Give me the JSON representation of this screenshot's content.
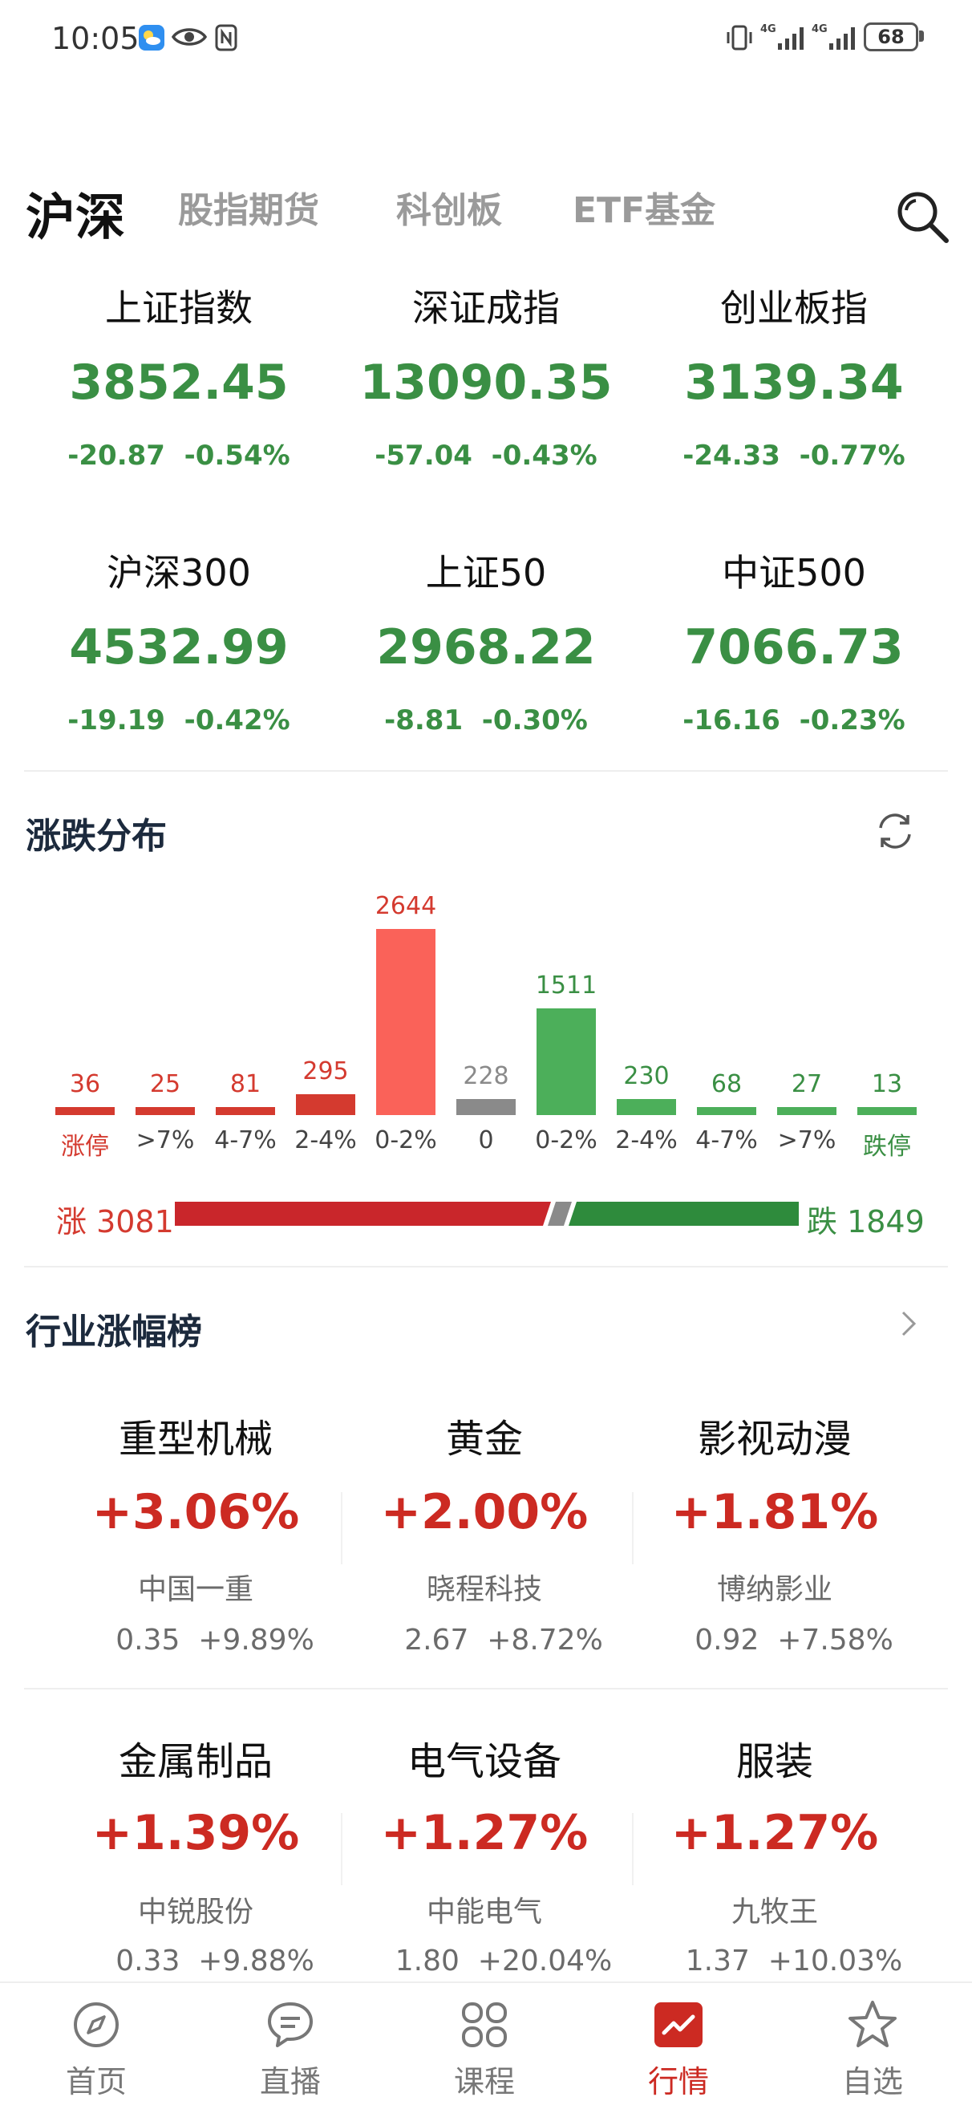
{
  "status_bar": {
    "time": "10:05",
    "battery": "68"
  },
  "tabs": [
    {
      "label": "沪深",
      "active": true
    },
    {
      "label": "股指期货",
      "active": false
    },
    {
      "label": "科创板",
      "active": false
    },
    {
      "label": "ETF基金",
      "active": false
    }
  ],
  "indices": [
    {
      "name": "上证指数",
      "value": "3852.45",
      "change": "-20.87",
      "pct": "-0.54%"
    },
    {
      "name": "深证成指",
      "value": "13090.35",
      "change": "-57.04",
      "pct": "-0.43%"
    },
    {
      "name": "创业板指",
      "value": "3139.34",
      "change": "-24.33",
      "pct": "-0.77%"
    },
    {
      "name": "沪深300",
      "value": "4532.99",
      "change": "-19.19",
      "pct": "-0.42%"
    },
    {
      "name": "上证50",
      "value": "2968.22",
      "change": "-8.81",
      "pct": "-0.30%"
    },
    {
      "name": "中证500",
      "value": "7066.73",
      "change": "-16.16",
      "pct": "-0.23%"
    }
  ],
  "distribution": {
    "title": "涨跌分布",
    "categories": [
      "涨停",
      ">7%",
      "4-7%",
      "2-4%",
      "0-2%",
      "0",
      "0-2%",
      "2-4%",
      "4-7%",
      ">7%",
      "跌停"
    ],
    "values": [
      36,
      25,
      81,
      295,
      2644,
      228,
      1511,
      230,
      68,
      27,
      13
    ],
    "kinds": [
      "up",
      "up",
      "up",
      "up",
      "up",
      "flat",
      "down",
      "down",
      "down",
      "down",
      "down"
    ],
    "up_label": "涨 3081",
    "down_label": "跌 1849",
    "up_total": 3081,
    "down_total": 1849
  },
  "industry": {
    "title": "行业涨幅榜",
    "items": [
      {
        "name": "重型机械",
        "pct": "+3.06%",
        "stock": "中国一重",
        "price": "0.35",
        "stock_pct": "+9.89%"
      },
      {
        "name": "黄金",
        "pct": "+2.00%",
        "stock": "晓程科技",
        "price": "2.67",
        "stock_pct": "+8.72%"
      },
      {
        "name": "影视动漫",
        "pct": "+1.81%",
        "stock": "博纳影业",
        "price": "0.92",
        "stock_pct": "+7.58%"
      },
      {
        "name": "金属制品",
        "pct": "+1.39%",
        "stock": "中锐股份",
        "price": "0.33",
        "stock_pct": "+9.88%"
      },
      {
        "name": "电气设备",
        "pct": "+1.27%",
        "stock": "中能电气",
        "price": "1.80",
        "stock_pct": "+20.04%"
      },
      {
        "name": "服装",
        "pct": "+1.27%",
        "stock": "九牧王",
        "price": "1.37",
        "stock_pct": "+10.03%"
      }
    ]
  },
  "bottom_nav": [
    {
      "label": "首页",
      "icon": "compass-icon"
    },
    {
      "label": "直播",
      "icon": "chat-bubble-icon"
    },
    {
      "label": "课程",
      "icon": "grid-icon"
    },
    {
      "label": "行情",
      "icon": "trend-chart-icon",
      "active": true
    },
    {
      "label": "自选",
      "icon": "star-icon"
    }
  ],
  "colors": {
    "up": "#d43a2f",
    "down": "#3a8f44",
    "flat": "#8a8a8a",
    "accent": "#cc2a22"
  }
}
